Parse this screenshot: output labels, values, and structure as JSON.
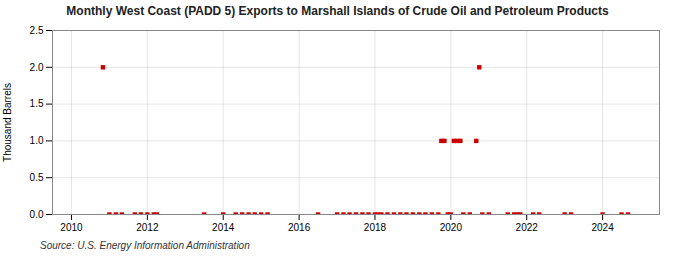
{
  "chart_data": {
    "type": "scatter",
    "title": "Monthly West Coast (PADD 5) Exports to Marshall Islands of Crude Oil and Petroleum Products",
    "ylabel": "Thousand Barrels",
    "source": "Source: U.S. Energy Information Administration",
    "color": "#cc0000",
    "marker": "square",
    "grid": true,
    "xlim": [
      2009.5,
      2025.5
    ],
    "ylim": [
      0,
      2.5
    ],
    "xticks": [
      2010,
      2012,
      2014,
      2016,
      2018,
      2020,
      2022,
      2024
    ],
    "yticks": [
      {
        "value": 0.0,
        "label": "0.0"
      },
      0.5,
      {
        "value": 1.0,
        "label": "1.0"
      },
      1.5,
      {
        "value": 2.0,
        "label": "2.0"
      },
      2.5
    ],
    "x": [
      2010.83,
      2011.0,
      2011.17,
      2011.33,
      2011.67,
      2011.83,
      2012.0,
      2012.17,
      2012.25,
      2013.5,
      2014.0,
      2014.33,
      2014.5,
      2014.67,
      2014.83,
      2015.0,
      2015.17,
      2016.5,
      2017.0,
      2017.17,
      2017.33,
      2017.5,
      2017.67,
      2017.83,
      2018.0,
      2018.08,
      2018.17,
      2018.33,
      2018.5,
      2018.67,
      2018.83,
      2019.0,
      2019.17,
      2019.33,
      2019.5,
      2019.67,
      2019.75,
      2019.83,
      2019.92,
      2020.0,
      2020.08,
      2020.17,
      2020.25,
      2020.33,
      2020.5,
      2020.67,
      2020.75,
      2020.83,
      2021.0,
      2021.5,
      2021.67,
      2021.75,
      2021.83,
      2022.17,
      2022.33,
      2023.0,
      2023.17,
      2024.0,
      2024.5,
      2024.67
    ],
    "values": [
      2.0,
      0.0,
      0.0,
      0.0,
      0.0,
      0.0,
      0.0,
      0.0,
      0.0,
      0.0,
      0.0,
      0.0,
      0.0,
      0.0,
      0.0,
      0.0,
      0.0,
      0.0,
      0.0,
      0.0,
      0.0,
      0.0,
      0.0,
      0.0,
      0.0,
      0.0,
      0.0,
      0.0,
      0.0,
      0.0,
      0.0,
      0.0,
      0.0,
      0.0,
      0.0,
      0.0,
      1.0,
      1.0,
      0.0,
      0.0,
      1.0,
      1.0,
      1.0,
      0.0,
      0.0,
      1.0,
      2.0,
      0.0,
      0.0,
      0.0,
      0.0,
      0.0,
      0.0,
      0.0,
      0.0,
      0.0,
      0.0,
      0.0,
      0.0,
      0.0
    ]
  }
}
